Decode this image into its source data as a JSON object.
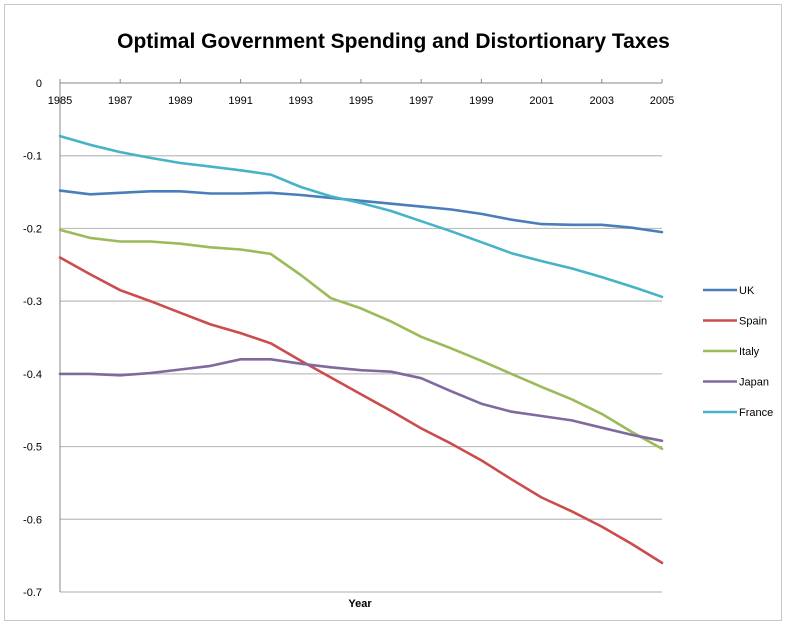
{
  "chart_data": {
    "type": "line",
    "title": "Optimal Government Spending and Distortionary Taxes",
    "xlabel": "Year",
    "ylabel": "",
    "x": [
      1985,
      1986,
      1987,
      1988,
      1989,
      1990,
      1991,
      1992,
      1993,
      1994,
      1995,
      1996,
      1997,
      1998,
      1999,
      2000,
      2001,
      2002,
      2003,
      2004,
      2005
    ],
    "x_tick_labels": [
      "1985",
      "1987",
      "1989",
      "1991",
      "1993",
      "1995",
      "1997",
      "1999",
      "2001",
      "2003",
      "2005"
    ],
    "y_tick_labels": [
      "0",
      "-0.1",
      "-0.2",
      "-0.3",
      "-0.4",
      "-0.5",
      "-0.6",
      "-0.7"
    ],
    "ylim": [
      -0.7,
      0
    ],
    "xlim": [
      1985,
      2005
    ],
    "grid": true,
    "legend_position": "right",
    "series": [
      {
        "name": "UK",
        "color": "#4a7ebb",
        "values": [
          -0.148,
          -0.153,
          -0.151,
          -0.149,
          -0.149,
          -0.152,
          -0.152,
          -0.151,
          -0.154,
          -0.158,
          -0.162,
          -0.166,
          -0.17,
          -0.174,
          -0.18,
          -0.188,
          -0.194,
          -0.195,
          -0.195,
          -0.199,
          -0.205
        ]
      },
      {
        "name": "Spain",
        "color": "#cc4c4c",
        "values": [
          -0.24,
          -0.263,
          -0.285,
          -0.3,
          -0.316,
          -0.332,
          -0.344,
          -0.358,
          -0.382,
          -0.405,
          -0.428,
          -0.451,
          -0.475,
          -0.496,
          -0.519,
          -0.545,
          -0.57,
          -0.589,
          -0.61,
          -0.634,
          -0.66
        ]
      },
      {
        "name": "Italy",
        "color": "#9bbb59",
        "values": [
          -0.202,
          -0.213,
          -0.218,
          -0.218,
          -0.221,
          -0.226,
          -0.229,
          -0.235,
          -0.264,
          -0.296,
          -0.31,
          -0.328,
          -0.349,
          -0.365,
          -0.382,
          -0.4,
          -0.418,
          -0.435,
          -0.455,
          -0.48,
          -0.503
        ]
      },
      {
        "name": "Japan",
        "color": "#7f6a9e",
        "values": [
          -0.4,
          -0.4,
          -0.402,
          -0.399,
          -0.394,
          -0.389,
          -0.38,
          -0.38,
          -0.386,
          -0.391,
          -0.395,
          -0.397,
          -0.406,
          -0.424,
          -0.441,
          -0.452,
          -0.458,
          -0.464,
          -0.474,
          -0.484,
          -0.492
        ]
      },
      {
        "name": "France",
        "color": "#46b3c6",
        "values": [
          -0.073,
          -0.085,
          -0.095,
          -0.103,
          -0.11,
          -0.115,
          -0.12,
          -0.126,
          -0.143,
          -0.156,
          -0.165,
          -0.176,
          -0.19,
          -0.204,
          -0.219,
          -0.234,
          -0.245,
          -0.255,
          -0.267,
          -0.28,
          -0.294
        ]
      }
    ]
  }
}
